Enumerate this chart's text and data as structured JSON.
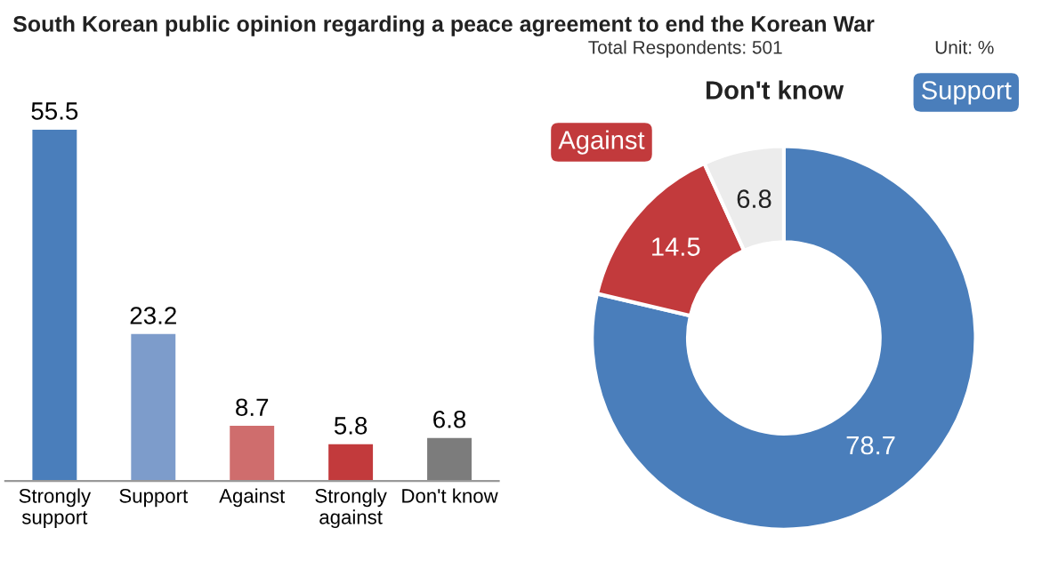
{
  "chart_data": [
    {
      "type": "bar",
      "title": "South Korean public opinion regarding a peace agreement to end the Korean War",
      "annotations": [
        "Total Respondents: 501",
        "Unit: %"
      ],
      "categories": [
        "Strongly support",
        "Support",
        "Against",
        "Strongly against",
        "Don't know"
      ],
      "values": [
        55.5,
        23.2,
        8.7,
        5.8,
        6.8
      ],
      "colors": [
        "#4a7ebb",
        "#7d9ccb",
        "#cf6d6d",
        "#c23a3c",
        "#7c7c7c"
      ],
      "data_labels": true
    },
    {
      "type": "donut",
      "categories": [
        "Support",
        "Against",
        "Don't know"
      ],
      "values": [
        78.7,
        14.5,
        6.8
      ],
      "colors": [
        "#4a7ebb",
        "#c23a3c",
        "#ececec"
      ],
      "data_labels": true
    }
  ]
}
